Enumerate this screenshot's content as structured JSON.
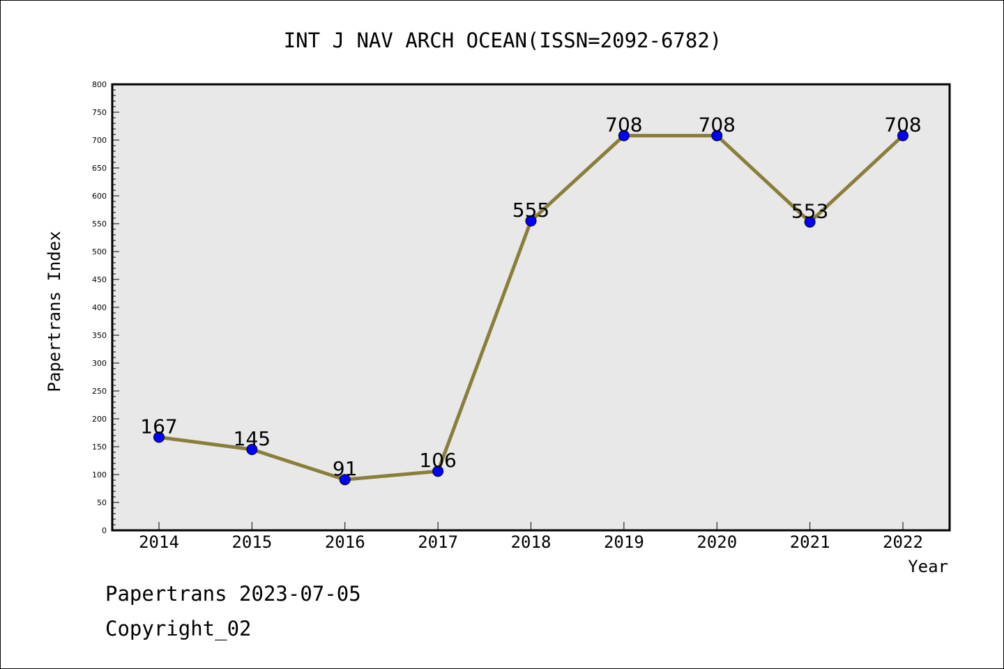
{
  "chart_data": {
    "type": "line",
    "title": "INT J NAV ARCH OCEAN(ISSN=2092-6782)",
    "xlabel": "Year",
    "ylabel": "Papertrans Index",
    "categories": [
      "2014",
      "2015",
      "2016",
      "2017",
      "2018",
      "2019",
      "2020",
      "2021",
      "2022"
    ],
    "series": [
      {
        "values": [
          167,
          145,
          91,
          106,
          555,
          708,
          708,
          553,
          708
        ]
      }
    ],
    "ylim": [
      0,
      800
    ],
    "yticks": [
      0,
      50,
      100,
      150,
      200,
      250,
      300,
      350,
      400,
      450,
      500,
      550,
      600,
      650,
      700,
      750,
      800
    ],
    "grid": false,
    "data_labels": true
  },
  "footer": {
    "date_line": "Papertrans 2023-07-05",
    "copyright_line": "Copyright_02"
  },
  "colors": {
    "plot_background": "#e8e8e8",
    "line": "#8b7d3a",
    "marker": "#0000ff"
  }
}
